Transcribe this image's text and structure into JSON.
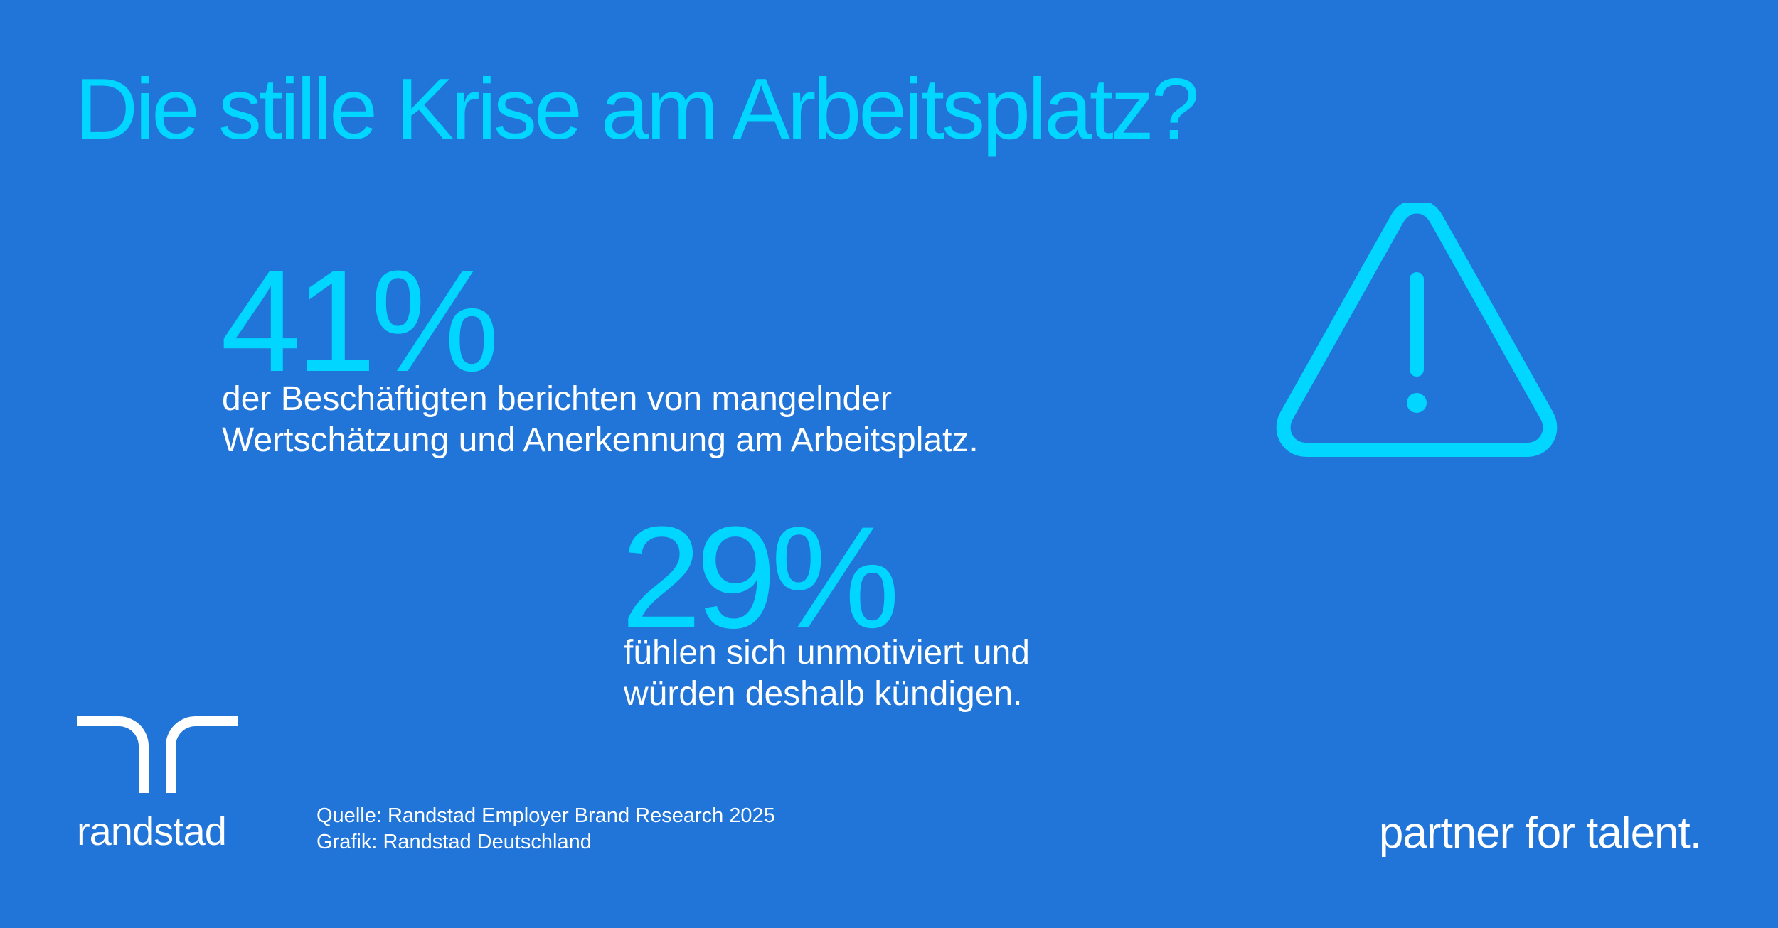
{
  "colors": {
    "background": "#2175d9",
    "accent": "#00d6ff",
    "text": "#ffffff"
  },
  "title": "Die stille Krise am Arbeitsplatz?",
  "stats": [
    {
      "value": "41%",
      "lines": [
        "der Beschäftigten berichten von mangelnder",
        "Wertschätzung und Anerkennung am Arbeitsplatz."
      ]
    },
    {
      "value": "29%",
      "lines": [
        "fühlen sich unmotiviert und",
        "würden deshalb kündigen."
      ]
    }
  ],
  "icon": "warning-triangle-icon",
  "logo": {
    "icon": "randstad-logo-mark",
    "wordmark": "randstad"
  },
  "source": {
    "line1": "Quelle: Randstad Employer Brand Research 2025",
    "line2": "Grafik: Randstad Deutschland"
  },
  "tagline": "partner for talent."
}
